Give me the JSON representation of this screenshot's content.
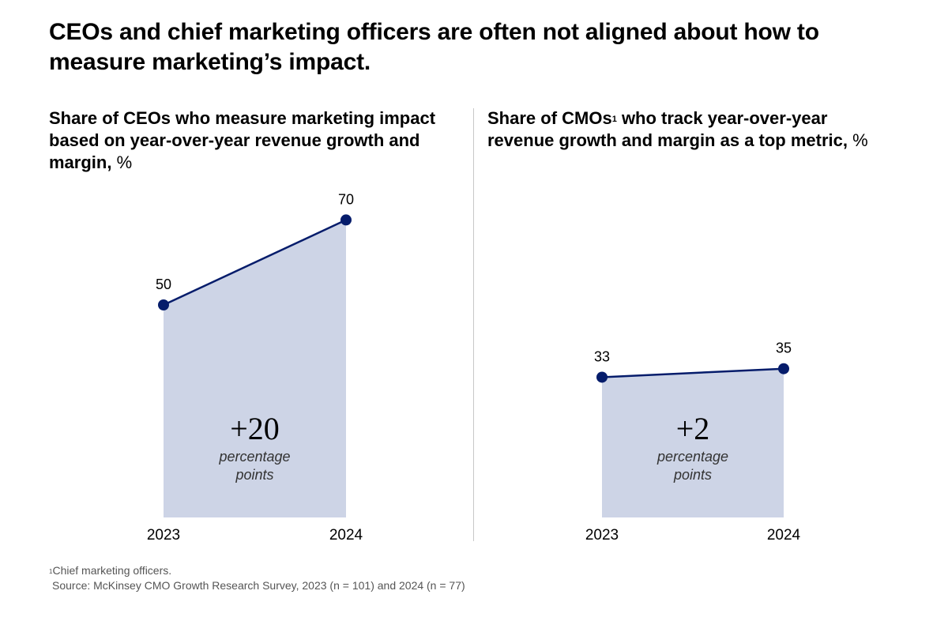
{
  "title": "CEOs and chief marketing officers are often not aligned about how to measure marketing’s impact.",
  "panels": [
    {
      "title": "Share of CEOs who measure marketing impact based on year-over-year revenue growth and margin,",
      "title_unit": "%",
      "change_value": "+20",
      "change_unit": "percentage points"
    },
    {
      "title_pre": "Share of CMOs",
      "title_sup": "1",
      "title_post": " who track year-over-year revenue growth and margin as a top metric,",
      "title_unit": "%",
      "change_value": "+2",
      "change_unit": "percentage points"
    }
  ],
  "footnote": {
    "marker": "1",
    "text": "Chief marketing officers.",
    "source": "Source: McKinsey CMO Growth Research Survey, 2023 (n = 101) and 2024 (n = 77)"
  },
  "colors": {
    "line": "#051c6b",
    "fill": "#cdd4e6",
    "divider": "#c8c8c8"
  },
  "chart_data": [
    {
      "type": "area",
      "title": "Share of CEOs who measure marketing impact based on year-over-year revenue growth and margin, %",
      "categories": [
        "2023",
        "2024"
      ],
      "values": [
        50,
        70
      ],
      "value_labels": [
        "50",
        "70"
      ],
      "annotation": "+20 percentage points",
      "ylim": [
        0,
        100
      ]
    },
    {
      "type": "area",
      "title": "Share of CMOs who track year-over-year revenue growth and margin as a top metric, %",
      "categories": [
        "2023",
        "2024"
      ],
      "values": [
        33,
        35
      ],
      "value_labels": [
        "33",
        "35"
      ],
      "annotation": "+2 percentage points",
      "ylim": [
        0,
        100
      ]
    }
  ]
}
